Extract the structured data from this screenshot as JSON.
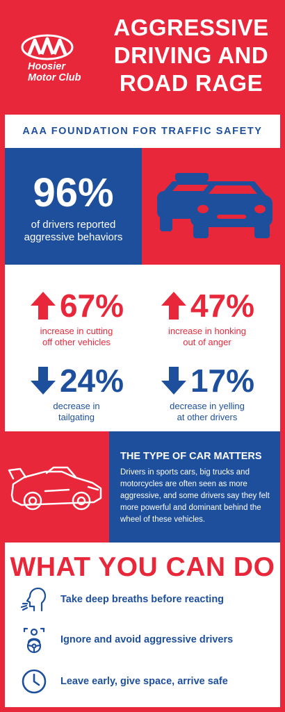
{
  "logo": {
    "line1": "Hoosier",
    "line2": "Motor Club"
  },
  "title_lines": [
    "AGGRESSIVE",
    "DRIVING AND",
    "ROAD RAGE"
  ],
  "source": "AAA FOUNDATION FOR TRAFFIC SAFETY",
  "headline_stat": {
    "value": "96%",
    "caption_line1": "of drivers reported",
    "caption_line2": "aggressive behaviors"
  },
  "stats": [
    {
      "direction": "up",
      "value": "67%",
      "line1": "increase in cutting",
      "line2": "off other vehicles"
    },
    {
      "direction": "up",
      "value": "47%",
      "line1": "increase in honking",
      "line2": "out of anger"
    },
    {
      "direction": "down",
      "value": "24%",
      "line1": "decrease in",
      "line2": "tailgating"
    },
    {
      "direction": "down",
      "value": "17%",
      "line1": "decrease in yelling",
      "line2": "at other drivers"
    }
  ],
  "car_type": {
    "heading": "THE TYPE OF CAR MATTERS",
    "body": "Drivers in sports cars, big trucks and motorcycles are often seen as more aggressive, and some drivers say they felt more powerful and dominant behind the wheel of these vehicles."
  },
  "what_you_can_do": {
    "heading": "WHAT YOU CAN DO",
    "items": [
      {
        "icon": "breathing-head-icon",
        "text": "Take deep breaths before reacting"
      },
      {
        "icon": "driver-steering-wheel-icon",
        "text": "Ignore and avoid aggressive drivers"
      },
      {
        "icon": "clock-icon",
        "text": "Leave early, give space, arrive safe"
      }
    ]
  },
  "colors": {
    "red": "#e8283a",
    "blue": "#1d4f9c",
    "white": "#ffffff"
  }
}
